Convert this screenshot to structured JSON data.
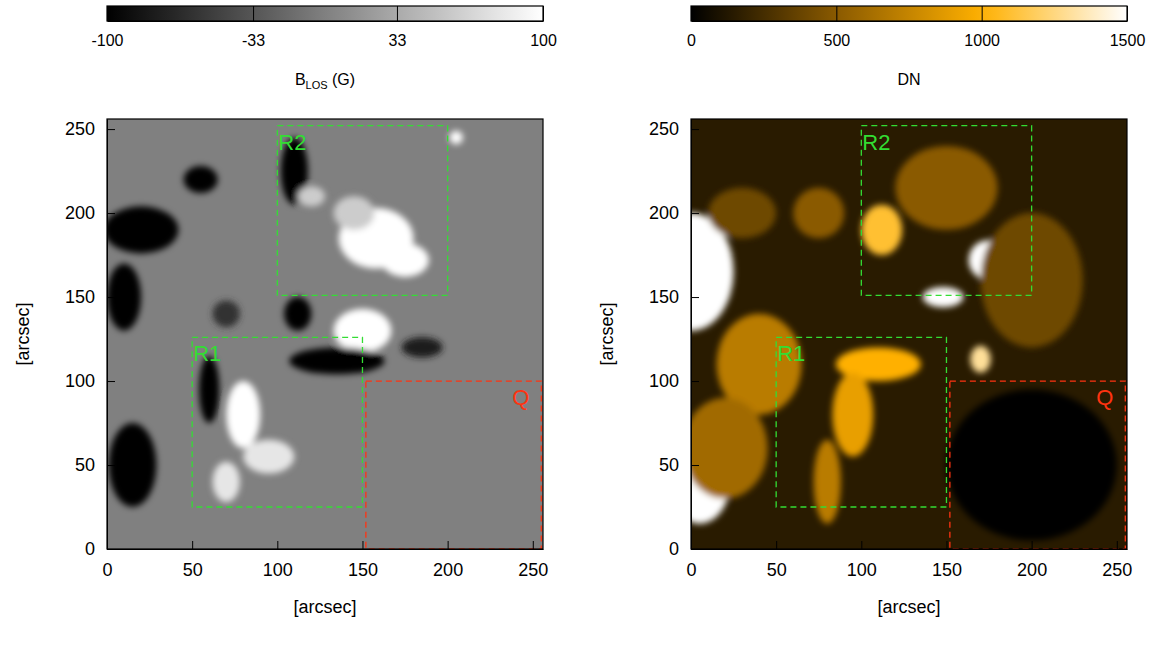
{
  "chart_data": [
    {
      "type": "image",
      "xlim": [
        0,
        256
      ],
      "ylim": [
        0,
        256
      ],
      "xticks": [
        0,
        50,
        100,
        150,
        200,
        250
      ],
      "yticks": [
        0,
        50,
        100,
        150,
        200,
        250
      ],
      "xlabel": "[arcsec]",
      "ylabel": "[arcsec]",
      "colorbar": {
        "range": [
          -100,
          100
        ],
        "ticks": [
          -100,
          -33,
          33,
          100
        ],
        "label": [
          "B",
          "LOS",
          " (G)"
        ],
        "colors": [
          "#000000",
          "#ffffff"
        ]
      },
      "background": 0,
      "features": [
        {
          "x": 150,
          "y": 130,
          "rx": 17,
          "ry": 13,
          "value": 100
        },
        {
          "x": 158,
          "y": 185,
          "rx": 22,
          "ry": 18,
          "value": 100
        },
        {
          "x": 175,
          "y": 172,
          "rx": 14,
          "ry": 10,
          "value": 100
        },
        {
          "x": 145,
          "y": 200,
          "rx": 12,
          "ry": 10,
          "value": 60
        },
        {
          "x": 135,
          "y": 112,
          "rx": 28,
          "ry": 8,
          "value": -100
        },
        {
          "x": 112,
          "y": 140,
          "rx": 8,
          "ry": 10,
          "value": -100
        },
        {
          "x": 80,
          "y": 80,
          "rx": 10,
          "ry": 20,
          "value": 100
        },
        {
          "x": 95,
          "y": 55,
          "rx": 15,
          "ry": 10,
          "value": 80
        },
        {
          "x": 70,
          "y": 40,
          "rx": 8,
          "ry": 12,
          "value": 80
        },
        {
          "x": 20,
          "y": 190,
          "rx": 22,
          "ry": 14,
          "value": -100
        },
        {
          "x": 10,
          "y": 150,
          "rx": 10,
          "ry": 20,
          "value": -100
        },
        {
          "x": 15,
          "y": 50,
          "rx": 14,
          "ry": 25,
          "value": -100
        },
        {
          "x": 60,
          "y": 95,
          "rx": 6,
          "ry": 20,
          "value": -100
        },
        {
          "x": 55,
          "y": 220,
          "rx": 10,
          "ry": 8,
          "value": -100
        },
        {
          "x": 110,
          "y": 225,
          "rx": 8,
          "ry": 20,
          "value": -100
        },
        {
          "x": 185,
          "y": 120,
          "rx": 12,
          "ry": 6,
          "value": -80
        },
        {
          "x": 205,
          "y": 245,
          "rx": 4,
          "ry": 4,
          "value": 100
        },
        {
          "x": 70,
          "y": 140,
          "rx": 8,
          "ry": 8,
          "value": -60
        },
        {
          "x": 120,
          "y": 210,
          "rx": 8,
          "ry": 6,
          "value": 60
        }
      ],
      "regions": [
        {
          "label": "R1",
          "x0": 50,
          "x1": 150,
          "y0": 25,
          "y1": 126,
          "color": "#33dd33"
        },
        {
          "label": "R2",
          "x0": 100,
          "x1": 200,
          "y0": 151,
          "y1": 252,
          "color": "#33dd33"
        },
        {
          "label": "Q",
          "x0": 152,
          "x1": 255,
          "y0": 0,
          "y1": 100,
          "color": "#ff3311"
        }
      ]
    },
    {
      "type": "image",
      "xlim": [
        0,
        256
      ],
      "ylim": [
        0,
        256
      ],
      "xticks": [
        0,
        50,
        100,
        150,
        200,
        250
      ],
      "yticks": [
        0,
        50,
        100,
        150,
        200,
        250
      ],
      "xlabel": "[arcsec]",
      "ylabel": "[arcsec]",
      "colorbar": {
        "range": [
          0,
          1500
        ],
        "ticks": [
          0,
          500,
          1000,
          1500
        ],
        "label": [
          "DN"
        ],
        "colors": [
          "#000000",
          "#8a5a00",
          "#ffb000",
          "#ffffff"
        ]
      },
      "background": 150,
      "features": [
        {
          "x": 0,
          "y": 165,
          "rx": 25,
          "ry": 35,
          "value": 1500
        },
        {
          "x": 148,
          "y": 150,
          "rx": 12,
          "ry": 6,
          "value": 1500
        },
        {
          "x": 175,
          "y": 172,
          "rx": 12,
          "ry": 12,
          "value": 1500
        },
        {
          "x": 112,
          "y": 190,
          "rx": 12,
          "ry": 15,
          "value": 1100
        },
        {
          "x": 170,
          "y": 113,
          "rx": 6,
          "ry": 8,
          "value": 1300
        },
        {
          "x": 5,
          "y": 40,
          "rx": 18,
          "ry": 25,
          "value": 1500
        },
        {
          "x": 40,
          "y": 110,
          "rx": 25,
          "ry": 30,
          "value": 700
        },
        {
          "x": 110,
          "y": 110,
          "rx": 25,
          "ry": 10,
          "value": 1000
        },
        {
          "x": 95,
          "y": 80,
          "rx": 12,
          "ry": 25,
          "value": 900
        },
        {
          "x": 80,
          "y": 40,
          "rx": 8,
          "ry": 25,
          "value": 700
        },
        {
          "x": 30,
          "y": 200,
          "rx": 20,
          "ry": 15,
          "value": 400
        },
        {
          "x": 150,
          "y": 215,
          "rx": 30,
          "ry": 25,
          "value": 500
        },
        {
          "x": 200,
          "y": 160,
          "rx": 30,
          "ry": 40,
          "value": 400
        },
        {
          "x": 20,
          "y": 60,
          "rx": 25,
          "ry": 30,
          "value": 600
        },
        {
          "x": 75,
          "y": 200,
          "rx": 15,
          "ry": 15,
          "value": 500
        },
        {
          "x": 200,
          "y": 50,
          "rx": 50,
          "ry": 45,
          "value": 20
        }
      ],
      "regions": [
        {
          "label": "R1",
          "x0": 50,
          "x1": 150,
          "y0": 25,
          "y1": 126,
          "color": "#33dd33"
        },
        {
          "label": "R2",
          "x0": 100,
          "x1": 200,
          "y0": 151,
          "y1": 252,
          "color": "#33dd33"
        },
        {
          "label": "Q",
          "x0": 152,
          "x1": 255,
          "y0": 0,
          "y1": 100,
          "color": "#ff3311"
        }
      ]
    }
  ]
}
